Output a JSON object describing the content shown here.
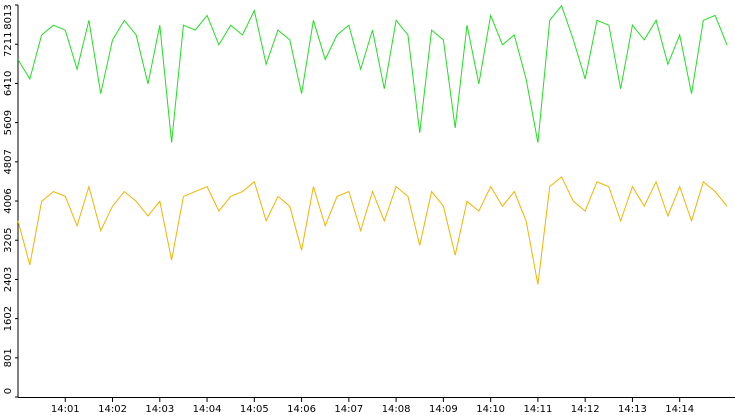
{
  "chart_data": {
    "type": "line",
    "x": [
      0,
      0.25,
      0.5,
      0.75,
      1,
      1.25,
      1.5,
      1.75,
      2,
      2.25,
      2.5,
      2.75,
      3,
      3.25,
      3.5,
      3.75,
      4,
      4.25,
      4.5,
      4.75,
      5,
      5.25,
      5.5,
      5.75,
      6,
      6.25,
      6.5,
      6.75,
      7,
      7.25,
      7.5,
      7.75,
      8,
      8.25,
      8.5,
      8.75,
      9,
      9.25,
      9.5,
      9.75,
      10,
      10.25,
      10.5,
      10.75,
      11,
      11.25,
      11.5,
      11.75,
      12,
      12.25,
      12.5,
      12.75,
      13,
      13.25,
      13.5,
      13.75,
      14,
      14.25,
      14.5,
      14.75,
      15
    ],
    "series": [
      {
        "color": "#22dd22",
        "values": [
          6900,
          6500,
          7400,
          7600,
          7500,
          6700,
          7700,
          6200,
          7300,
          7700,
          7400,
          6400,
          7600,
          5200,
          7600,
          7500,
          7800,
          7200,
          7600,
          7400,
          7900,
          6800,
          7500,
          7300,
          6200,
          7700,
          6900,
          7400,
          7600,
          6700,
          7500,
          6300,
          7700,
          7400,
          5400,
          7500,
          7300,
          5500,
          7600,
          6400,
          7800,
          7200,
          7400,
          6500,
          5200,
          7700,
          8000,
          7300,
          6500,
          7700,
          7600,
          6300,
          7600,
          7300,
          7700,
          6800,
          7400,
          6200,
          7700,
          7800,
          7200
        ]
      },
      {
        "color": "#f0b400",
        "values": [
          3600,
          2700,
          4000,
          4200,
          4100,
          3500,
          4300,
          3400,
          3900,
          4200,
          4000,
          3700,
          4000,
          2800,
          4100,
          4200,
          4300,
          3800,
          4100,
          4200,
          4400,
          3600,
          4100,
          3900,
          3000,
          4300,
          3500,
          4100,
          4200,
          3400,
          4200,
          3600,
          4300,
          4100,
          3100,
          4200,
          3900,
          2900,
          4000,
          3800,
          4300,
          3900,
          4200,
          3600,
          2300,
          4300,
          4500,
          4000,
          3800,
          4400,
          4300,
          3600,
          4300,
          3900,
          4400,
          3700,
          4300,
          3600,
          4400,
          4200,
          3900
        ]
      }
    ],
    "xlim": [
      0,
      15.17
    ],
    "xticks": [
      {
        "value": 1,
        "label": "14:01"
      },
      {
        "value": 2,
        "label": "14:02"
      },
      {
        "value": 3,
        "label": "14:03"
      },
      {
        "value": 4,
        "label": "14:04"
      },
      {
        "value": 5,
        "label": "14:05"
      },
      {
        "value": 6,
        "label": "14:06"
      },
      {
        "value": 7,
        "label": "14:07"
      },
      {
        "value": 8,
        "label": "14:08"
      },
      {
        "value": 9,
        "label": "14:09"
      },
      {
        "value": 10,
        "label": "14:10"
      },
      {
        "value": 11,
        "label": "14:11"
      },
      {
        "value": 12,
        "label": "14:12"
      },
      {
        "value": 13,
        "label": "14:13"
      },
      {
        "value": 14,
        "label": "14:14"
      }
    ],
    "ylim": [
      0,
      8013
    ],
    "yticks": [
      0,
      801,
      1602,
      2403,
      3205,
      4006,
      4807,
      5609,
      6410,
      7211,
      8013
    ],
    "grid": false
  }
}
